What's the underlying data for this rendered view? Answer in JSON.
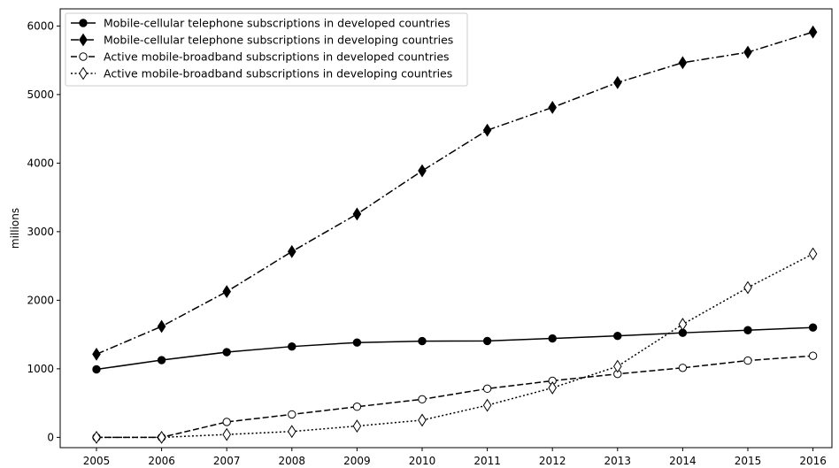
{
  "chart_data": {
    "type": "line",
    "title": "",
    "xlabel": "",
    "ylabel": "millions",
    "x": [
      "2005",
      "2006",
      "2007",
      "2008",
      "2009",
      "2010",
      "2011",
      "2012",
      "2013",
      "2014",
      "2015",
      "2016"
    ],
    "ylim": [
      -150,
      6250
    ],
    "yticks": [
      0,
      1000,
      2000,
      3000,
      4000,
      5000,
      6000
    ],
    "grid": false,
    "legend_position": "top-left",
    "series": [
      {
        "name": "Mobile-cellular telephone subscriptions in developed countries",
        "values": [
          992,
          1127,
          1243,
          1325,
          1383,
          1404,
          1406,
          1443,
          1480,
          1525,
          1563,
          1602
        ],
        "line_style": "solid",
        "marker": "filled-circle"
      },
      {
        "name": "Mobile-cellular telephone subscriptions in developing countries",
        "values": [
          1213,
          1618,
          2126,
          2710,
          3257,
          3888,
          4480,
          4812,
          5175,
          5465,
          5617,
          5912
        ],
        "line_style": "dash-dot",
        "marker": "filled-diamond"
      },
      {
        "name": "Active mobile-broadband subscriptions in developed countries",
        "values": [
          0,
          0,
          225,
          335,
          447,
          555,
          710,
          825,
          925,
          1014,
          1120,
          1189
        ],
        "line_style": "dashed",
        "marker": "open-circle"
      },
      {
        "name": "Active mobile-broadband subscriptions in developing countries",
        "values": [
          0,
          0,
          42,
          86,
          165,
          251,
          468,
          722,
          1036,
          1649,
          2185,
          2676
        ],
        "line_style": "dotted",
        "marker": "open-diamond"
      }
    ]
  }
}
